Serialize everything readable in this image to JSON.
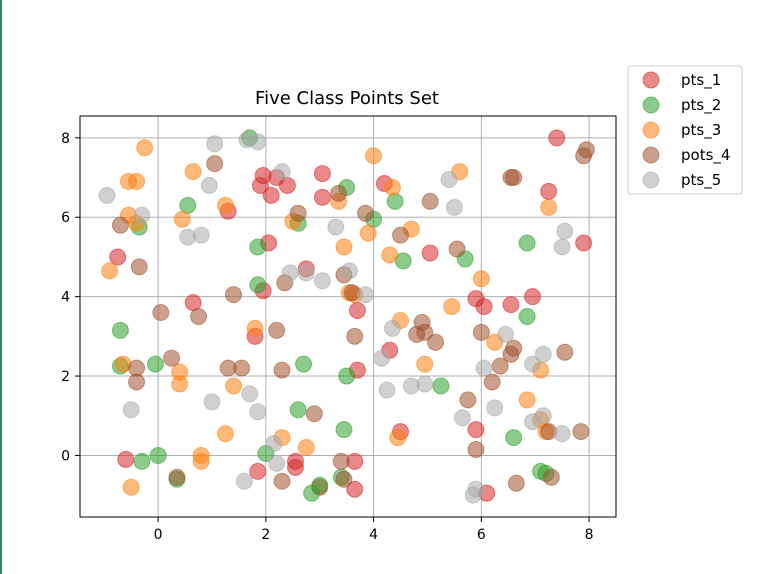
{
  "chart_data": {
    "type": "scatter",
    "title": "Five Class Points Set",
    "xlabel": "",
    "ylabel": "",
    "xlim": [
      -1.45,
      8.5
    ],
    "ylim": [
      -1.55,
      8.55
    ],
    "xticks": [
      0,
      2,
      4,
      6,
      8
    ],
    "yticks": [
      0,
      2,
      4,
      6,
      8
    ],
    "grid": true,
    "legend_position": "outside-top-right",
    "series": [
      {
        "name": "pts_1",
        "color": "#d62728",
        "points": [
          [
            7.4,
            8.0
          ],
          [
            1.95,
            7.05
          ],
          [
            2.2,
            7.0
          ],
          [
            3.05,
            7.1
          ],
          [
            1.9,
            6.8
          ],
          [
            2.1,
            6.55
          ],
          [
            2.4,
            6.8
          ],
          [
            3.05,
            6.5
          ],
          [
            4.2,
            6.85
          ],
          [
            7.25,
            6.65
          ],
          [
            1.3,
            6.15
          ],
          [
            2.05,
            5.35
          ],
          [
            -0.75,
            5.0
          ],
          [
            7.9,
            5.35
          ],
          [
            1.95,
            4.15
          ],
          [
            2.75,
            4.7
          ],
          [
            0.65,
            3.85
          ],
          [
            5.9,
            3.95
          ],
          [
            6.05,
            3.75
          ],
          [
            6.55,
            3.8
          ],
          [
            6.95,
            4.0
          ],
          [
            3.7,
            3.65
          ],
          [
            5.05,
            5.1
          ],
          [
            1.8,
            3.0
          ],
          [
            4.3,
            2.65
          ],
          [
            3.7,
            2.15
          ],
          [
            4.5,
            0.6
          ],
          [
            5.9,
            0.65
          ],
          [
            -0.6,
            -0.1
          ],
          [
            2.55,
            -0.15
          ],
          [
            2.55,
            -0.3
          ],
          [
            3.65,
            -0.15
          ],
          [
            1.85,
            -0.4
          ],
          [
            3.0,
            -0.8
          ],
          [
            3.65,
            -0.85
          ],
          [
            6.1,
            -0.95
          ]
        ]
      },
      {
        "name": "pts_2",
        "color": "#2ca02c",
        "points": [
          [
            1.7,
            8.0
          ],
          [
            0.55,
            6.3
          ],
          [
            -0.35,
            5.75
          ],
          [
            2.6,
            5.85
          ],
          [
            3.5,
            6.75
          ],
          [
            4.4,
            6.4
          ],
          [
            4.0,
            5.95
          ],
          [
            1.85,
            5.25
          ],
          [
            5.7,
            4.95
          ],
          [
            6.85,
            5.35
          ],
          [
            4.55,
            4.9
          ],
          [
            1.85,
            4.3
          ],
          [
            -0.7,
            3.15
          ],
          [
            6.85,
            3.5
          ],
          [
            -0.7,
            2.25
          ],
          [
            -0.05,
            2.3
          ],
          [
            2.7,
            2.3
          ],
          [
            3.5,
            2.0
          ],
          [
            5.25,
            1.75
          ],
          [
            2.6,
            1.15
          ],
          [
            3.45,
            0.65
          ],
          [
            6.6,
            0.45
          ],
          [
            0.0,
            0.0
          ],
          [
            -0.3,
            -0.15
          ],
          [
            2.0,
            0.05
          ],
          [
            7.1,
            -0.4
          ],
          [
            7.2,
            -0.45
          ],
          [
            0.35,
            -0.6
          ],
          [
            3.4,
            -0.55
          ],
          [
            3.0,
            -0.75
          ],
          [
            2.85,
            -0.95
          ]
        ]
      },
      {
        "name": "pts_3",
        "color": "#ff7f0e",
        "points": [
          [
            -0.25,
            7.75
          ],
          [
            -0.55,
            6.9
          ],
          [
            -0.4,
            6.9
          ],
          [
            0.65,
            7.15
          ],
          [
            5.6,
            7.15
          ],
          [
            4.0,
            7.55
          ],
          [
            4.35,
            6.75
          ],
          [
            1.25,
            6.3
          ],
          [
            3.35,
            6.4
          ],
          [
            -0.55,
            6.05
          ],
          [
            -0.4,
            5.85
          ],
          [
            0.45,
            5.95
          ],
          [
            2.5,
            5.9
          ],
          [
            3.9,
            5.6
          ],
          [
            4.7,
            5.7
          ],
          [
            3.45,
            5.25
          ],
          [
            4.3,
            5.05
          ],
          [
            -0.9,
            4.65
          ],
          [
            6.0,
            4.45
          ],
          [
            3.55,
            4.1
          ],
          [
            3.65,
            4.05
          ],
          [
            5.45,
            3.75
          ],
          [
            4.5,
            3.4
          ],
          [
            1.8,
            3.2
          ],
          [
            6.25,
            2.85
          ],
          [
            4.95,
            2.3
          ],
          [
            -0.65,
            2.3
          ],
          [
            0.4,
            2.1
          ],
          [
            0.4,
            1.8
          ],
          [
            1.4,
            1.75
          ],
          [
            7.1,
            2.15
          ],
          [
            6.85,
            1.4
          ],
          [
            7.1,
            0.9
          ],
          [
            7.25,
            6.25
          ],
          [
            7.2,
            0.6
          ],
          [
            1.25,
            0.55
          ],
          [
            2.3,
            0.45
          ],
          [
            4.45,
            0.45
          ],
          [
            2.75,
            0.2
          ],
          [
            0.8,
            0.0
          ],
          [
            0.8,
            -0.15
          ],
          [
            -0.5,
            -0.8
          ]
        ]
      },
      {
        "name": "pots_4",
        "color": "#a0522d",
        "points": [
          [
            1.05,
            7.35
          ],
          [
            7.95,
            7.7
          ],
          [
            7.9,
            7.55
          ],
          [
            6.55,
            7.0
          ],
          [
            6.6,
            7.0
          ],
          [
            3.35,
            6.6
          ],
          [
            5.05,
            6.4
          ],
          [
            2.6,
            6.1
          ],
          [
            3.85,
            6.1
          ],
          [
            -0.7,
            5.8
          ],
          [
            4.5,
            5.55
          ],
          [
            5.55,
            5.2
          ],
          [
            -0.35,
            4.75
          ],
          [
            2.35,
            4.35
          ],
          [
            3.45,
            4.55
          ],
          [
            3.6,
            4.1
          ],
          [
            1.4,
            4.05
          ],
          [
            0.05,
            3.6
          ],
          [
            0.75,
            3.5
          ],
          [
            2.2,
            3.15
          ],
          [
            3.65,
            3.0
          ],
          [
            4.8,
            3.05
          ],
          [
            4.9,
            3.35
          ],
          [
            4.95,
            3.1
          ],
          [
            5.15,
            2.85
          ],
          [
            6.0,
            3.1
          ],
          [
            6.55,
            2.55
          ],
          [
            6.6,
            2.7
          ],
          [
            7.55,
            2.6
          ],
          [
            6.35,
            2.25
          ],
          [
            0.25,
            2.45
          ],
          [
            1.3,
            2.2
          ],
          [
            1.55,
            2.2
          ],
          [
            2.3,
            2.15
          ],
          [
            -0.4,
            2.2
          ],
          [
            -0.4,
            1.85
          ],
          [
            6.2,
            1.85
          ],
          [
            5.75,
            1.4
          ],
          [
            2.9,
            1.05
          ],
          [
            7.25,
            0.6
          ],
          [
            7.85,
            0.6
          ],
          [
            5.9,
            0.15
          ],
          [
            3.4,
            -0.15
          ],
          [
            7.3,
            -0.55
          ],
          [
            0.35,
            -0.55
          ],
          [
            2.3,
            -0.65
          ],
          [
            6.65,
            -0.7
          ],
          [
            3.45,
            -0.6
          ]
        ]
      },
      {
        "name": "pts_5",
        "color": "#a9a9a9",
        "points": [
          [
            1.05,
            7.85
          ],
          [
            1.65,
            7.95
          ],
          [
            1.85,
            7.9
          ],
          [
            2.3,
            7.15
          ],
          [
            5.4,
            6.95
          ],
          [
            -0.95,
            6.55
          ],
          [
            0.95,
            6.8
          ],
          [
            -0.3,
            6.05
          ],
          [
            5.5,
            6.25
          ],
          [
            3.3,
            5.75
          ],
          [
            0.55,
            5.5
          ],
          [
            0.8,
            5.55
          ],
          [
            7.55,
            5.65
          ],
          [
            7.5,
            5.25
          ],
          [
            2.45,
            4.6
          ],
          [
            2.75,
            4.6
          ],
          [
            3.05,
            4.4
          ],
          [
            3.55,
            4.65
          ],
          [
            3.85,
            4.05
          ],
          [
            4.35,
            3.2
          ],
          [
            6.05,
            2.2
          ],
          [
            6.45,
            3.05
          ],
          [
            6.95,
            2.3
          ],
          [
            7.15,
            2.55
          ],
          [
            4.15,
            2.45
          ],
          [
            4.25,
            1.65
          ],
          [
            4.7,
            1.75
          ],
          [
            4.95,
            1.8
          ],
          [
            1.0,
            1.35
          ],
          [
            1.7,
            1.55
          ],
          [
            1.85,
            1.1
          ],
          [
            -0.5,
            1.15
          ],
          [
            5.65,
            0.95
          ],
          [
            6.25,
            1.2
          ],
          [
            6.95,
            0.85
          ],
          [
            7.15,
            1.0
          ],
          [
            7.5,
            0.55
          ],
          [
            2.15,
            0.3
          ],
          [
            2.2,
            -0.2
          ],
          [
            1.6,
            -0.65
          ],
          [
            5.9,
            -0.85
          ],
          [
            5.85,
            -1.0
          ]
        ]
      }
    ]
  }
}
